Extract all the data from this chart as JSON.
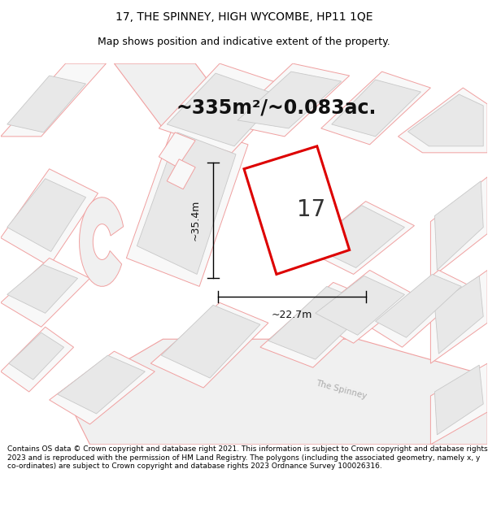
{
  "title": "17, THE SPINNEY, HIGH WYCOMBE, HP11 1QE",
  "subtitle": "Map shows position and indicative extent of the property.",
  "area_text": "~335m²/~0.083ac.",
  "width_text": "~22.7m",
  "height_text": "~35.4m",
  "label_17": "17",
  "footer_text": "Contains OS data © Crown copyright and database right 2021. This information is subject to Crown copyright and database rights 2023 and is reproduced with the permission of HM Land Registry. The polygons (including the associated geometry, namely x, y co-ordinates) are subject to Crown copyright and database rights 2023 Ordnance Survey 100026316.",
  "bg_color": "#ffffff",
  "pink_outline": "#f0a0a0",
  "plot_red": "#dd0000",
  "building_fill": "#e8e8e8",
  "building_outline_gray": "#c8c8c8",
  "road_fill": "#f0f0f0",
  "road_label_color": "#aaaaaa",
  "dim_color": "#111111",
  "title_fontsize": 10,
  "subtitle_fontsize": 9,
  "area_fontsize": 17,
  "dim_fontsize": 9,
  "label_fontsize": 20,
  "footer_fontsize": 6.5
}
